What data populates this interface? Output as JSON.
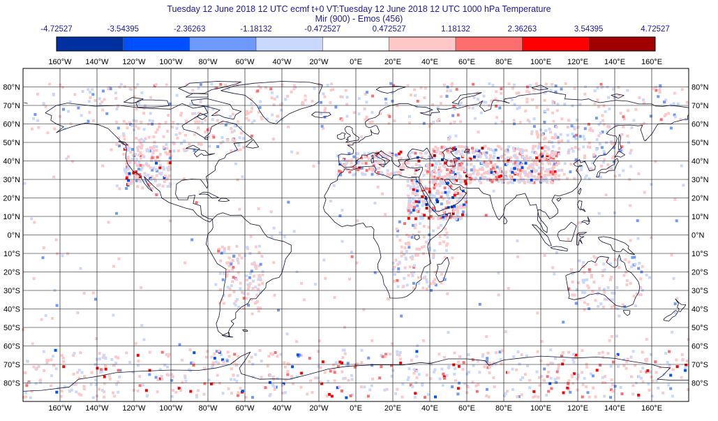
{
  "title": {
    "line1": "Tuesday 12 June 2018 12 UTC ecmf t+0 VT:Tuesday 12 June 2018 12 UTC 1000 hPa  Temperature",
    "line2": "Mir (900) - Emos (456)"
  },
  "colorbar": {
    "labels": [
      "-4.72527",
      "-3.54395",
      "-2.36263",
      "-1.18132",
      "-0.472527",
      "0.472527",
      "1.18132",
      "2.36263",
      "3.54395",
      "4.72527"
    ],
    "colors": [
      "#0030a0",
      "#0050ff",
      "#6e99ff",
      "#c8d8ff",
      "#ffffff",
      "#ffc8c8",
      "#ff6e6e",
      "#ff0000",
      "#a00000"
    ]
  },
  "map": {
    "projection": "cylindrical",
    "lon_labels": [
      "160°W",
      "140°W",
      "120°W",
      "100°W",
      "80°W",
      "60°W",
      "40°W",
      "20°W",
      "0°E",
      "20°E",
      "40°E",
      "60°E",
      "80°E",
      "100°E",
      "120°E",
      "140°E",
      "160°E"
    ],
    "lon_values": [
      -160,
      -140,
      -120,
      -100,
      -80,
      -60,
      -40,
      -20,
      0,
      20,
      40,
      60,
      80,
      100,
      120,
      140,
      160
    ],
    "lat_labels": [
      "80°N",
      "70°N",
      "60°N",
      "50°N",
      "40°N",
      "30°N",
      "20°N",
      "10°N",
      "0°N",
      "10°S",
      "20°S",
      "30°S",
      "40°S",
      "50°S",
      "60°S",
      "70°S",
      "80°S"
    ],
    "lat_values": [
      80,
      70,
      60,
      50,
      40,
      30,
      20,
      10,
      0,
      -10,
      -20,
      -30,
      -40,
      -50,
      -60,
      -70,
      -80
    ],
    "grid": true,
    "coastline_color": "#101030",
    "gridline_color": "#000000"
  }
}
